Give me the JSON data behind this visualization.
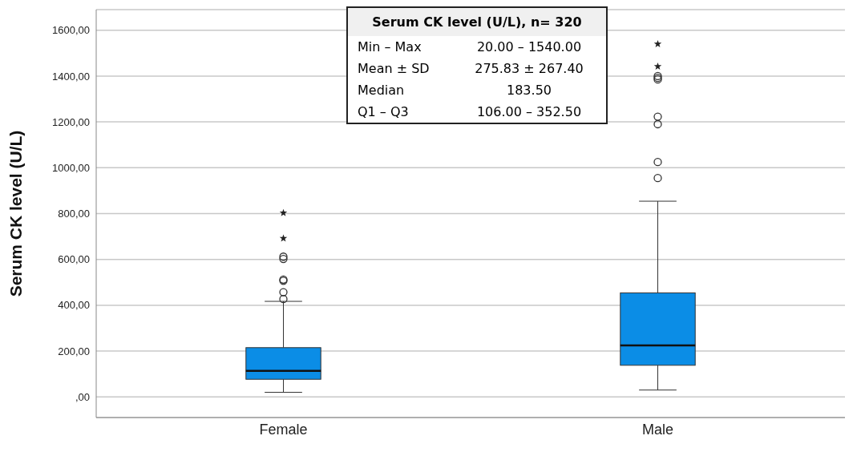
{
  "chart_data": {
    "type": "box",
    "ylabel": "Serum CK level (U/L)",
    "categories": [
      "Female",
      "Male"
    ],
    "color": "#0b8de6",
    "boxes": [
      {
        "low": 20,
        "q1": 77,
        "median": 114,
        "q3": 215,
        "high": 417,
        "outliers": [
          427,
          457,
          507,
          512,
          602,
          612,
          692,
          803
        ]
      },
      {
        "low": 30,
        "q1": 138,
        "median": 225,
        "q3": 454,
        "high": 854,
        "outliers": [
          955,
          1025,
          1190,
          1223,
          1385,
          1392,
          1400,
          1442,
          1540
        ]
      }
    ],
    "ylim": [
      -90,
      1690
    ],
    "yticks": [
      {
        "value": 0,
        "label": ",00"
      },
      {
        "value": 200,
        "label": "200,00"
      },
      {
        "value": 400,
        "label": "400,00"
      },
      {
        "value": 600,
        "label": "600,00"
      },
      {
        "value": 800,
        "label": "800,00"
      },
      {
        "value": 1000,
        "label": "1000,00"
      },
      {
        "value": 1200,
        "label": "1200,00"
      },
      {
        "value": 1400,
        "label": "1400,00"
      },
      {
        "value": 1600,
        "label": "1600,00"
      }
    ],
    "grid": "y",
    "annotations": [
      "Serum CK level (U/L), n= 320",
      "Min – Max",
      "20.00 – 1540.00",
      "Mean ± SD",
      "275.83 ± 267.40",
      "Median",
      "183.50",
      "Q1 – Q3",
      "106.00 – 352.50"
    ]
  }
}
